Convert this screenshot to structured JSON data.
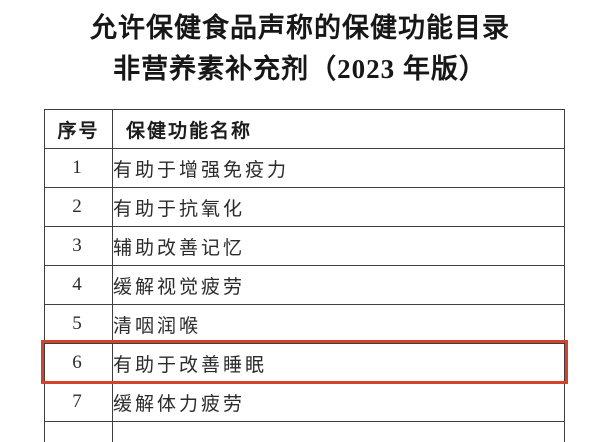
{
  "title": {
    "line1": "允许保健食品声称的保健功能目录",
    "line2": "非营养素补充剂（2023 年版）"
  },
  "table": {
    "headers": [
      "序号",
      "保健功能名称"
    ],
    "rows": [
      {
        "num": "1",
        "name": "有助于增强免疫力"
      },
      {
        "num": "2",
        "name": "有助于抗氧化"
      },
      {
        "num": "3",
        "name": "辅助改善记忆"
      },
      {
        "num": "4",
        "name": "缓解视觉疲劳"
      },
      {
        "num": "5",
        "name": "清咽润喉"
      },
      {
        "num": "6",
        "name": "有助于改善睡眠"
      },
      {
        "num": "7",
        "name": "缓解体力疲劳"
      }
    ],
    "highlighted_row_num": "6"
  },
  "colors": {
    "highlight_border": "#d2432e",
    "table_border": "#3f3f3f",
    "background": "#ffffff",
    "text": "#1c1c1c"
  }
}
